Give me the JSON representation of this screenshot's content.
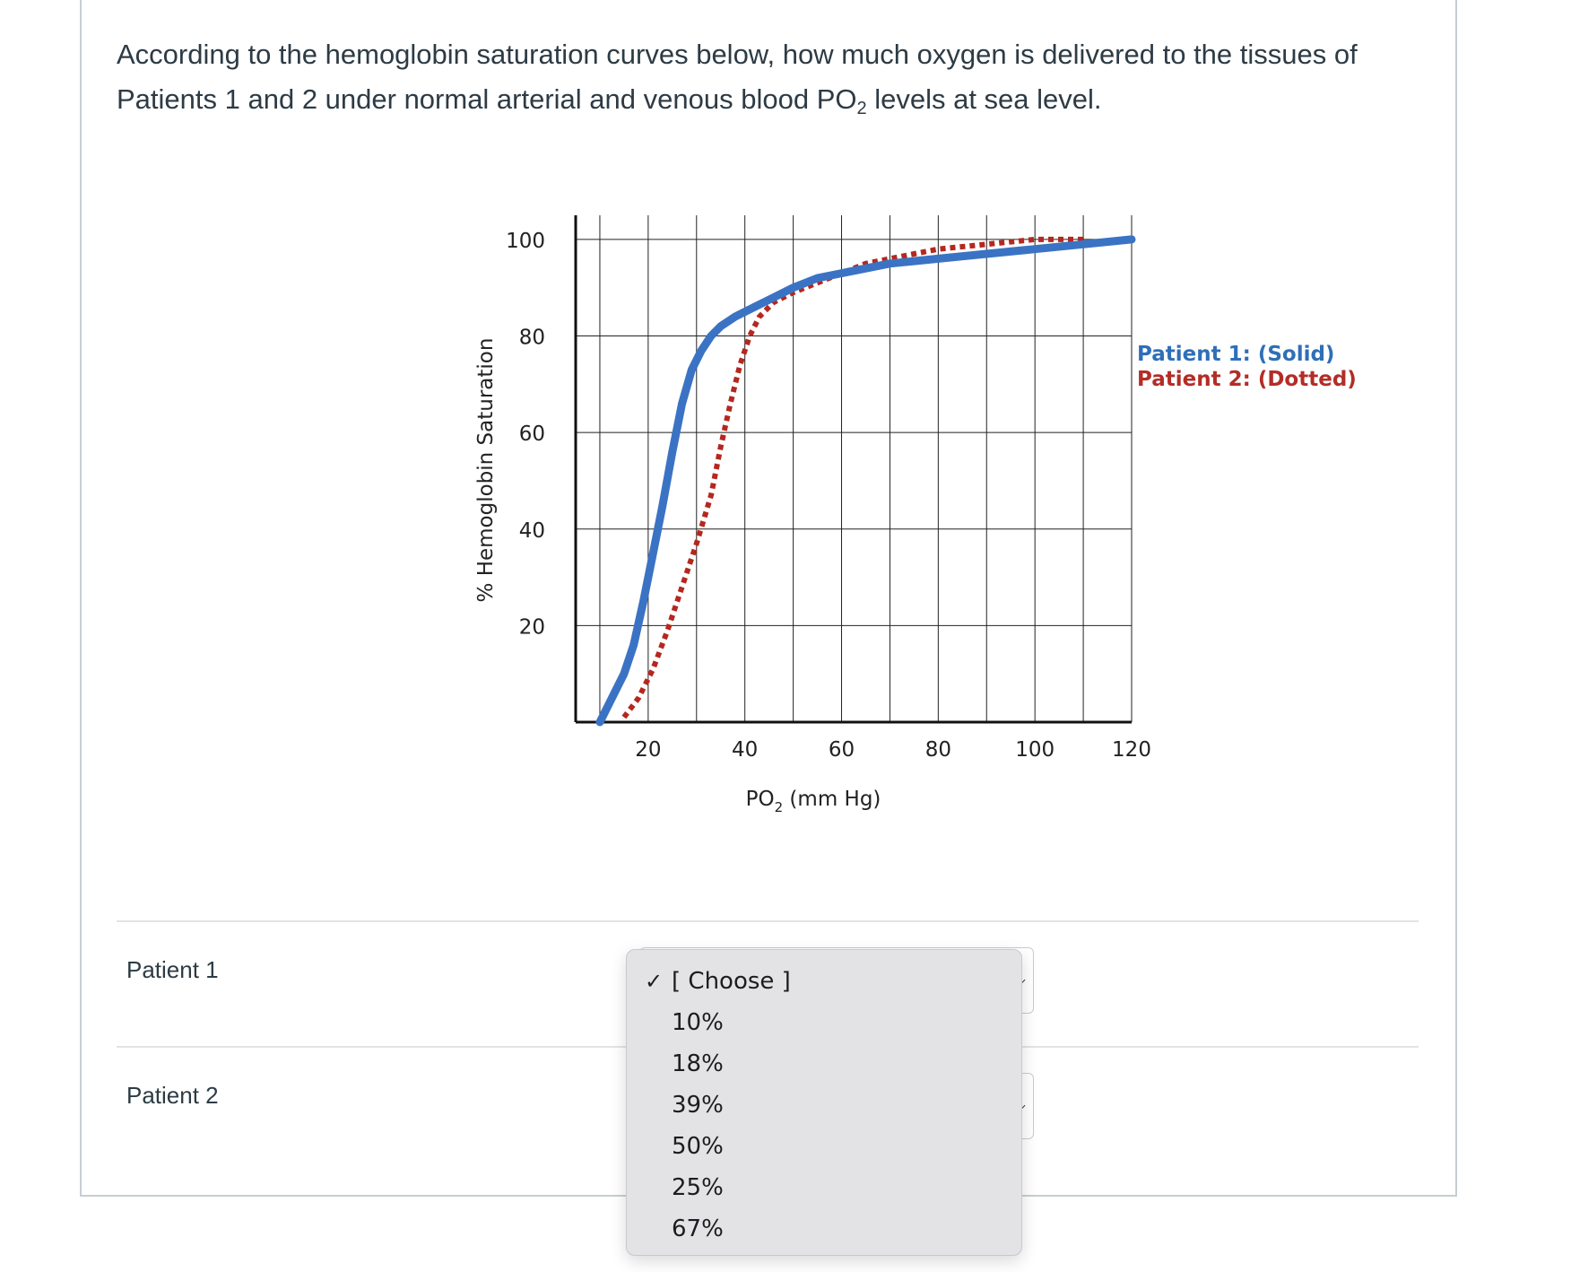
{
  "question": {
    "text_before": "According to the hemoglobin saturation curves below, how much oxygen is delivered to the tissues of Patients 1 and 2 under normal arterial and venous blood ",
    "po2_main": "PO",
    "po2_sub": "2",
    "text_after": " levels at sea level."
  },
  "chart": {
    "ylabel": "% Hemoglobin Saturation",
    "xlabel_main": "PO",
    "xlabel_sub": "2",
    "xlabel_rest": " (mm Hg)",
    "legend": {
      "solid": "Patient 1: (Solid)",
      "dotted": "Patient 2: (Dotted)"
    },
    "colors": {
      "solid": "#3b73c4",
      "dotted": "#b5271f",
      "legend_solid": "#2f6fb8",
      "legend_dotted": "#b32d26"
    }
  },
  "chart_data": {
    "type": "line",
    "xlabel": "PO2 (mm Hg)",
    "ylabel": "% Hemoglobin Saturation",
    "x_ticks": [
      "20",
      "40",
      "60",
      "80",
      "100",
      "120"
    ],
    "y_ticks": [
      "100",
      "80",
      "60",
      "40",
      "20"
    ],
    "xlim": [
      5,
      120
    ],
    "ylim": [
      0,
      105
    ],
    "grid": true,
    "legend_position": "right",
    "series": [
      {
        "name": "Patient 1: (Solid)",
        "style": "solid",
        "x": [
          10,
          13,
          15,
          17,
          19,
          21,
          23,
          25,
          27,
          29,
          31,
          33,
          35,
          38,
          42,
          46,
          50,
          55,
          60,
          65,
          70,
          80,
          90,
          100,
          110,
          120
        ],
        "y": [
          0,
          6,
          10,
          16,
          25,
          35,
          45,
          56,
          66,
          73,
          77,
          80,
          82,
          84,
          86,
          88,
          90,
          92,
          93,
          94,
          95,
          96,
          97,
          98,
          99,
          100
        ]
      },
      {
        "name": "Patient 2: (Dotted)",
        "style": "dotted",
        "x": [
          15,
          18,
          21,
          24,
          27,
          30,
          33,
          35,
          37,
          39,
          41,
          43,
          46,
          50,
          55,
          60,
          65,
          70,
          75,
          80,
          90,
          100,
          110
        ],
        "y": [
          1,
          5,
          11,
          19,
          28,
          37,
          47,
          57,
          66,
          74,
          80,
          84,
          87,
          89,
          91,
          93,
          95,
          96,
          97,
          98,
          99,
          100,
          100
        ]
      }
    ]
  },
  "rows": [
    {
      "label": "Patient 1"
    },
    {
      "label": "Patient 2"
    }
  ],
  "dropdown": {
    "options": [
      "[ Choose ]",
      "10%",
      "18%",
      "39%",
      "50%",
      "25%",
      "67%"
    ],
    "selected_index": 0,
    "check_glyph": "✓"
  }
}
